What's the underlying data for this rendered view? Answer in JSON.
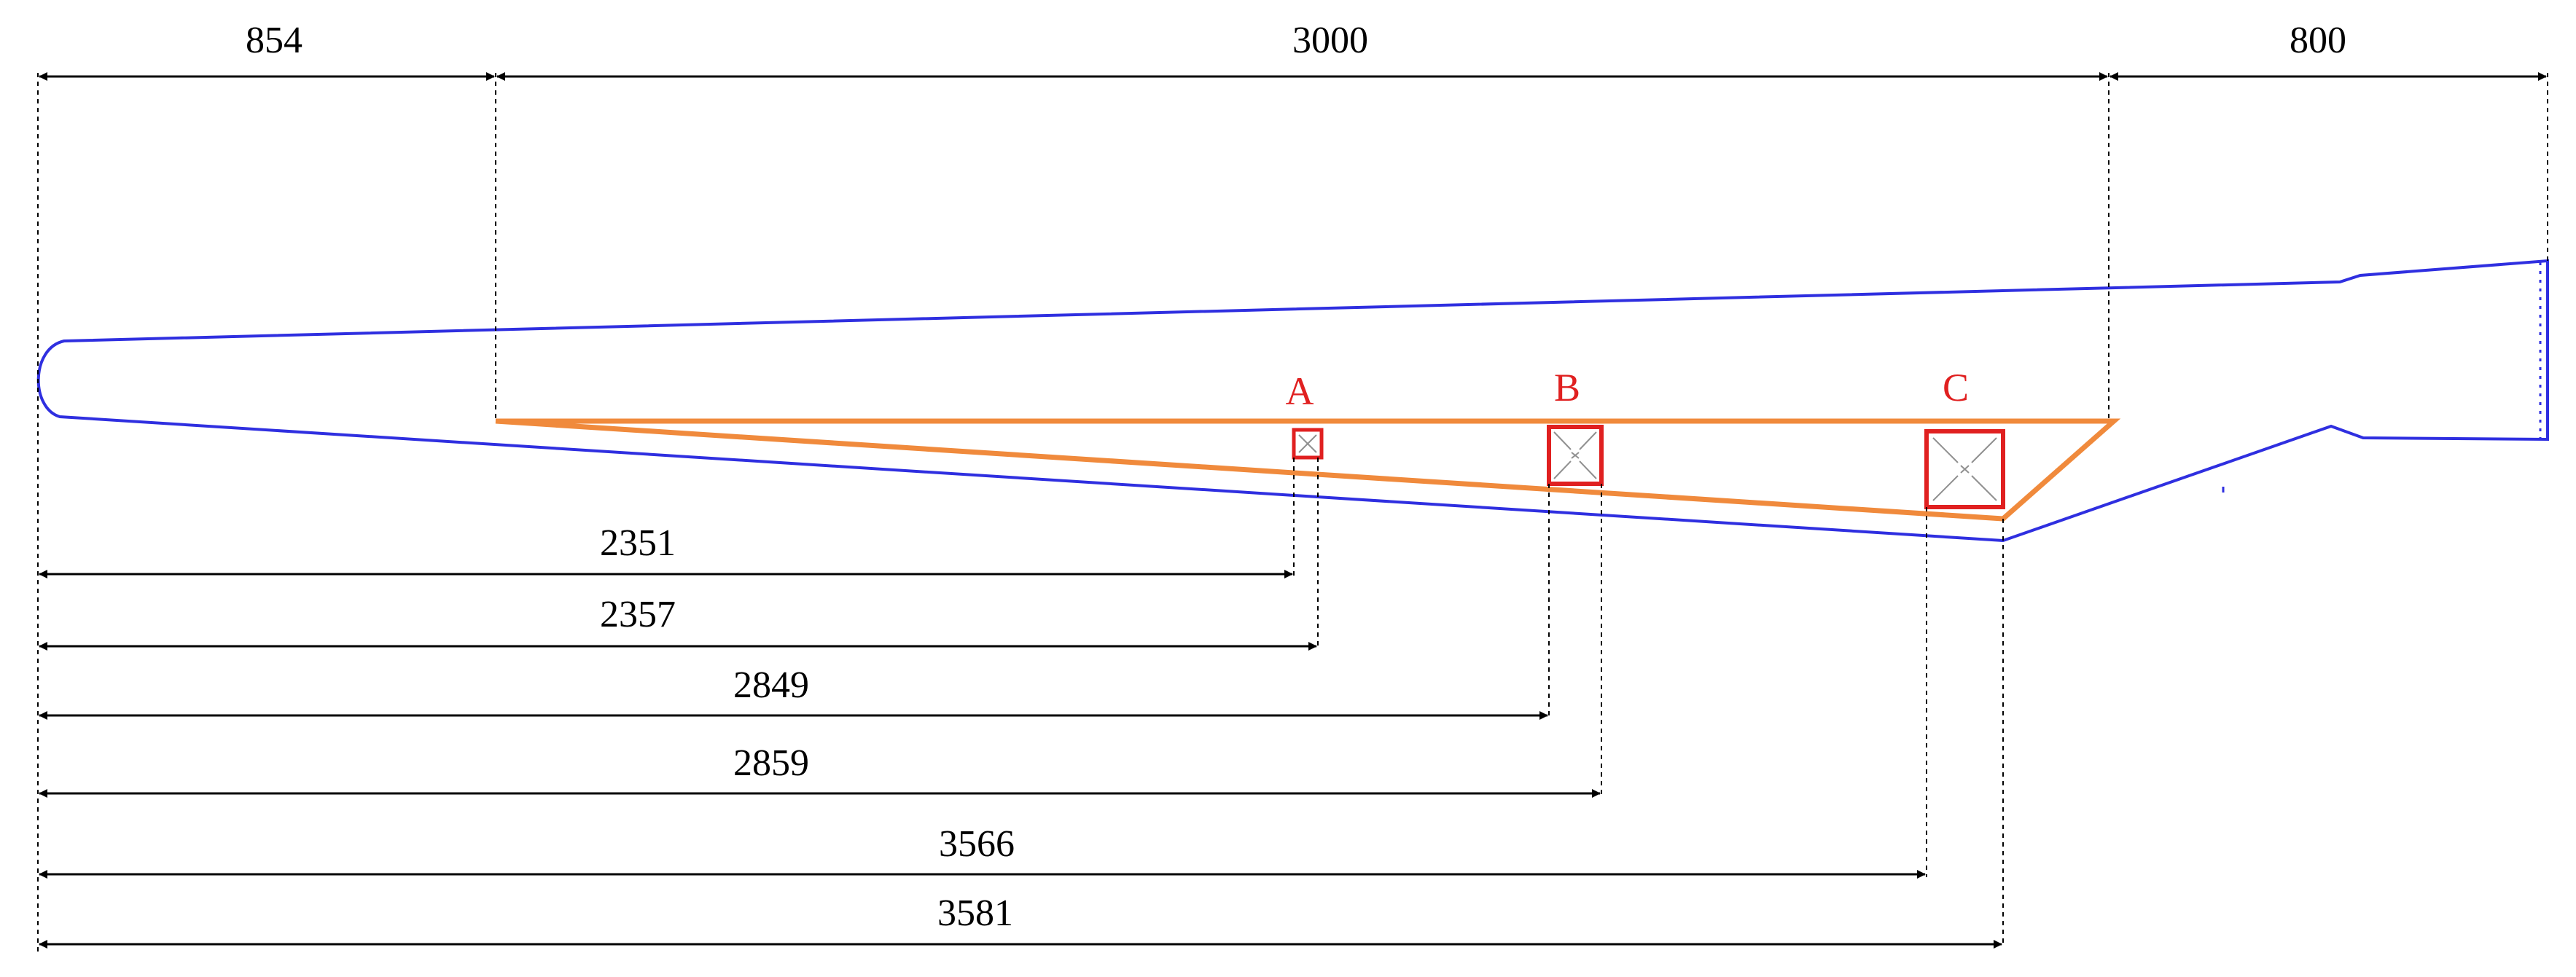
{
  "colors": {
    "outline": "#2f2fe0",
    "triangle": "#f08a3c",
    "marker": "#e02020",
    "dimension": "#000000",
    "cross": "#909090"
  },
  "top_dimensions": [
    "854",
    "3000",
    "800"
  ],
  "bottom_dimensions": [
    "2351",
    "2357",
    "2849",
    "2859",
    "3566",
    "3581"
  ],
  "markers": [
    "A",
    "B",
    "C"
  ]
}
